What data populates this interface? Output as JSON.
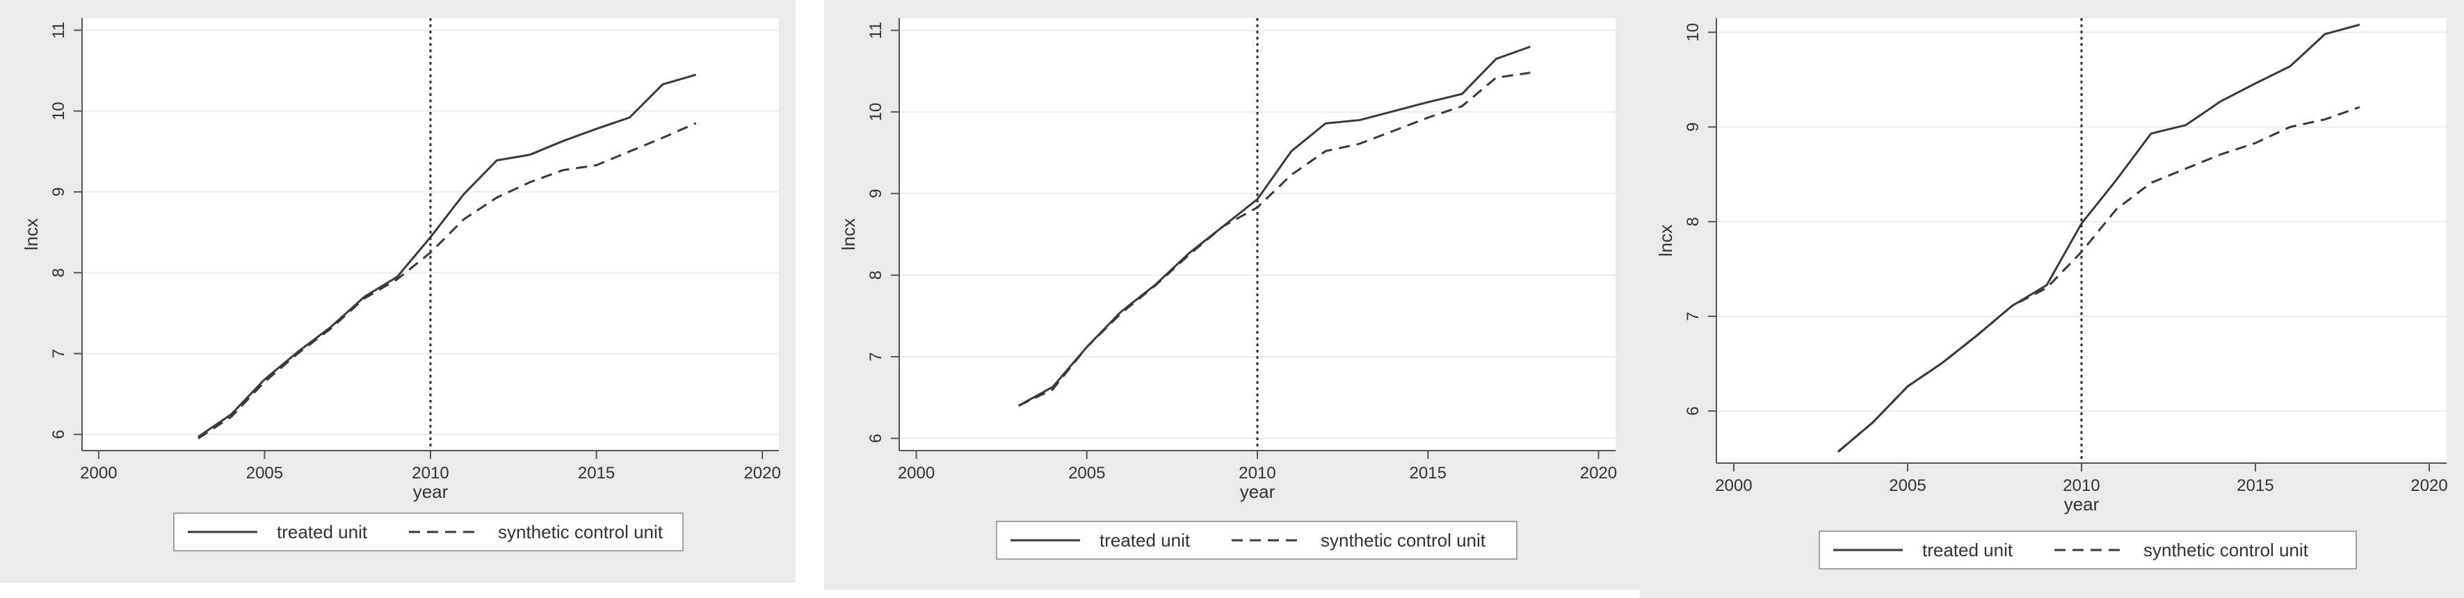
{
  "colors": {
    "panel_background": "#eaeaea",
    "plot_background": "#ffffff",
    "line": "#3a3a3a",
    "gridline": "#e6e6e6"
  },
  "chart_data": [
    {
      "type": "line",
      "xlabel": "year",
      "ylabel": "lncx",
      "xlim": [
        1999.5,
        2020.5
      ],
      "ylim": [
        5.8,
        11.15
      ],
      "xticks": [
        2000,
        2005,
        2010,
        2015,
        2020
      ],
      "yticks": [
        6,
        7,
        8,
        9,
        10,
        11
      ],
      "grid": "horizontal",
      "vline": {
        "x": 2010,
        "style": "dotted"
      },
      "legend": {
        "position": "bottom"
      },
      "x": [
        2003,
        2004,
        2005,
        2006,
        2007,
        2008,
        2009,
        2010,
        2011,
        2012,
        2013,
        2014,
        2015,
        2016,
        2017,
        2018
      ],
      "series": [
        {
          "name": "treated unit",
          "style": "solid",
          "values": [
            5.97,
            6.25,
            6.68,
            7.02,
            7.33,
            7.7,
            7.95,
            8.44,
            8.97,
            9.39,
            9.46,
            9.63,
            9.78,
            9.92,
            10.33,
            10.45
          ]
        },
        {
          "name": "synthetic control unit",
          "style": "dashed",
          "values": [
            5.95,
            6.22,
            6.65,
            7.0,
            7.31,
            7.68,
            7.92,
            8.25,
            8.66,
            8.93,
            9.12,
            9.27,
            9.33,
            9.5,
            9.67,
            9.85
          ]
        }
      ]
    },
    {
      "type": "line",
      "xlabel": "year",
      "ylabel": "lncx",
      "xlim": [
        1999.5,
        2020.5
      ],
      "ylim": [
        5.85,
        11.15
      ],
      "xticks": [
        2000,
        2005,
        2010,
        2015,
        2020
      ],
      "yticks": [
        6,
        7,
        8,
        9,
        10,
        11
      ],
      "grid": "horizontal",
      "vline": {
        "x": 2010,
        "style": "dotted"
      },
      "legend": {
        "position": "bottom"
      },
      "x": [
        2003,
        2004,
        2005,
        2006,
        2007,
        2008,
        2009,
        2010,
        2011,
        2012,
        2013,
        2014,
        2015,
        2016,
        2017,
        2018
      ],
      "series": [
        {
          "name": "treated unit",
          "style": "solid",
          "values": [
            6.4,
            6.63,
            7.12,
            7.55,
            7.88,
            8.27,
            8.6,
            8.93,
            9.52,
            9.86,
            9.9,
            10.01,
            10.12,
            10.22,
            10.65,
            10.8
          ]
        },
        {
          "name": "synthetic control unit",
          "style": "dashed",
          "values": [
            6.4,
            6.6,
            7.12,
            7.53,
            7.87,
            8.25,
            8.6,
            8.83,
            9.23,
            9.52,
            9.61,
            9.77,
            9.93,
            10.07,
            10.42,
            10.48
          ]
        }
      ]
    },
    {
      "type": "line",
      "xlabel": "year",
      "ylabel": "lncx",
      "xlim": [
        1999.5,
        2020.5
      ],
      "ylim": [
        5.45,
        10.15
      ],
      "xticks": [
        2000,
        2005,
        2010,
        2015,
        2020
      ],
      "yticks": [
        6,
        7,
        8,
        9,
        10
      ],
      "grid": "horizontal",
      "vline": {
        "x": 2010,
        "style": "dotted"
      },
      "legend": {
        "position": "bottom"
      },
      "x": [
        2003,
        2004,
        2005,
        2006,
        2007,
        2008,
        2009,
        2010,
        2011,
        2012,
        2013,
        2014,
        2015,
        2016,
        2017,
        2018
      ],
      "series": [
        {
          "name": "treated unit",
          "style": "solid",
          "values": [
            5.57,
            5.88,
            6.26,
            6.51,
            6.8,
            7.11,
            7.33,
            7.98,
            8.44,
            8.93,
            9.02,
            9.27,
            9.46,
            9.64,
            9.98,
            10.08
          ]
        },
        {
          "name": "synthetic control unit",
          "style": "dashed",
          "values": [
            5.57,
            5.88,
            6.26,
            6.51,
            6.8,
            7.11,
            7.3,
            7.68,
            8.13,
            8.41,
            8.56,
            8.71,
            8.83,
            9.0,
            9.08,
            9.21
          ]
        }
      ]
    }
  ]
}
